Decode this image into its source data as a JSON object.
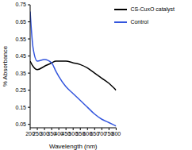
{
  "chart_data": {
    "type": "line",
    "x_label": "Wavelength (nm)",
    "y_label": "% Absorbance",
    "x": [
      200,
      220,
      250,
      300,
      350,
      380,
      400,
      450,
      500,
      550,
      600,
      650,
      700,
      750,
      800
    ],
    "series": [
      {
        "name": "CS-CuxO catalyst",
        "color": "#000000",
        "values": [
          0.42,
          0.39,
          0.37,
          0.39,
          0.41,
          0.42,
          0.42,
          0.42,
          0.41,
          0.4,
          0.38,
          0.35,
          0.32,
          0.29,
          0.25
        ]
      },
      {
        "name": "Control",
        "color": "#3355dd",
        "values": [
          0.71,
          0.5,
          0.42,
          0.43,
          0.41,
          0.36,
          0.33,
          0.27,
          0.23,
          0.19,
          0.15,
          0.11,
          0.08,
          0.06,
          0.04
        ]
      }
    ],
    "xlim": [
      200,
      800
    ],
    "xticks": [
      200,
      250,
      300,
      350,
      400,
      450,
      500,
      550,
      600,
      650,
      700,
      750,
      800
    ],
    "ylim": [
      0.03,
      0.75
    ],
    "yticks": [
      0.05,
      0.15,
      0.25,
      0.35,
      0.45,
      0.55,
      0.65,
      0.75
    ],
    "grid": false,
    "legend": "top-right"
  }
}
